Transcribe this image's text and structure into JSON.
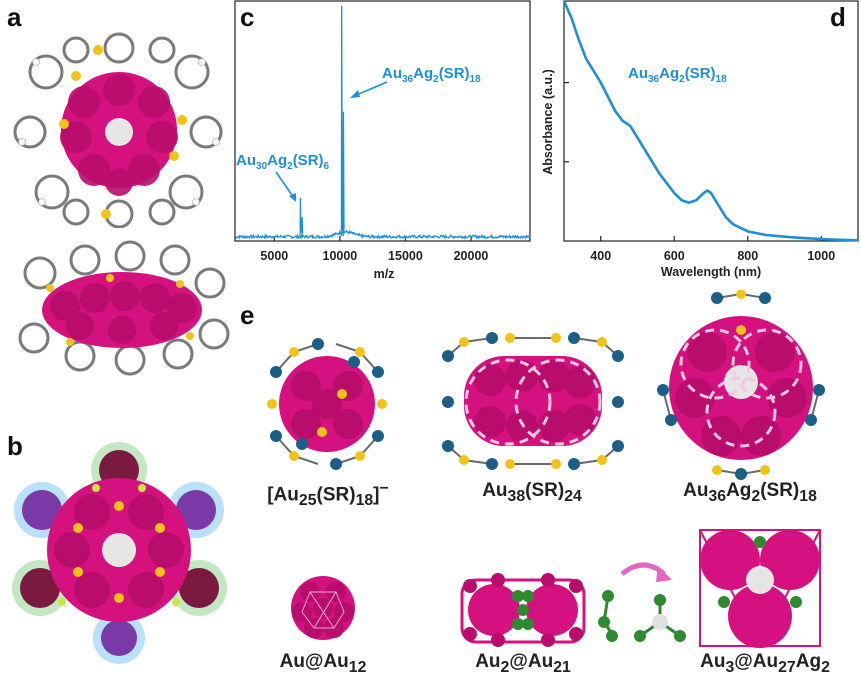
{
  "panels": {
    "a": "a",
    "b": "b",
    "c": "c",
    "d": "d",
    "e": "e"
  },
  "chart_data": [
    {
      "type": "line",
      "panel": "c",
      "xlabel": "m/z",
      "ylabel": "",
      "xlim": [
        2000,
        24500
      ],
      "ylim": [
        0,
        1
      ],
      "xticks": [
        5000,
        10000,
        15000,
        20000
      ],
      "peaks": [
        {
          "x": 6990,
          "y": 0.18,
          "label": "Au30Ag2(SR)6"
        },
        {
          "x": 10140,
          "y": 0.98,
          "label": "Au36Ag2(SR)18"
        }
      ],
      "annotations": [
        "Au30Ag2(SR)6",
        "Au36Ag2(SR)18"
      ]
    },
    {
      "type": "line",
      "panel": "d",
      "xlabel": "Wavelength (nm)",
      "ylabel": "Absorbance (a.u.)",
      "xlim": [
        300,
        1100
      ],
      "ylim": [
        0,
        1
      ],
      "xticks": [
        400,
        600,
        800,
        1000
      ],
      "x": [
        300,
        320,
        340,
        360,
        380,
        400,
        420,
        440,
        460,
        480,
        500,
        520,
        540,
        560,
        580,
        600,
        620,
        640,
        660,
        680,
        690,
        700,
        720,
        740,
        760,
        800,
        850,
        900,
        950,
        1000,
        1050,
        1100
      ],
      "y": [
        1.0,
        0.93,
        0.84,
        0.76,
        0.71,
        0.66,
        0.6,
        0.54,
        0.5,
        0.48,
        0.43,
        0.38,
        0.33,
        0.28,
        0.24,
        0.2,
        0.17,
        0.16,
        0.17,
        0.2,
        0.21,
        0.2,
        0.15,
        0.1,
        0.07,
        0.04,
        0.025,
        0.018,
        0.012,
        0.008,
        0.005,
        0.003
      ],
      "annotations": [
        "Au36Ag2(SR)18"
      ]
    }
  ],
  "labels_c": {
    "peak1_base": "Au",
    "peak1_s1": "30",
    "peak1_mid": "Ag",
    "peak1_s2": "2",
    "peak1_mid2": "(SR)",
    "peak1_s3": "6",
    "peak2_base": "Au",
    "peak2_s1": "36",
    "peak2_mid": "Ag",
    "peak2_s2": "2",
    "peak2_mid2": "(SR)",
    "peak2_s3": "18",
    "xlabel": "m/z"
  },
  "labels_d": {
    "ann_base": "Au",
    "ann_s1": "36",
    "ann_mid": "Ag",
    "ann_s2": "2",
    "ann_mid2": "(SR)",
    "ann_s3": "18",
    "xlabel": "Wavelength (nm)",
    "ylabel": "Absorbance (a.u.)"
  },
  "captions": {
    "c1": {
      "a": "[Au",
      "s1": "25",
      "b": "(SR)",
      "s2": "18",
      "c": "]",
      "sup": "−"
    },
    "c2": {
      "a": "Au",
      "s1": "38",
      "b": "(SR)",
      "s2": "24"
    },
    "c3": {
      "a": "Au",
      "s1": "36",
      "b": "Ag",
      "s2": "2",
      "c": "(SR)",
      "s3": "18"
    },
    "c4": {
      "a": "Au@Au",
      "s1": "12"
    },
    "c5": {
      "a": "Au",
      "s1": "2",
      "b": "@Au",
      "s2": "21"
    },
    "c6": {
      "a": "Au",
      "s1": "3",
      "b": "@Au",
      "s2": "27",
      "c": "Ag",
      "s3": "2"
    }
  },
  "colors": {
    "gold_core": "#d4117f",
    "sulfur": "#f2c316",
    "metal_blue": "#1b5f86",
    "silver": "#e0e0e0",
    "ligand": "#6e6e6e",
    "trace": "#1e8fd6",
    "shell_green": "#2f8a2f"
  }
}
